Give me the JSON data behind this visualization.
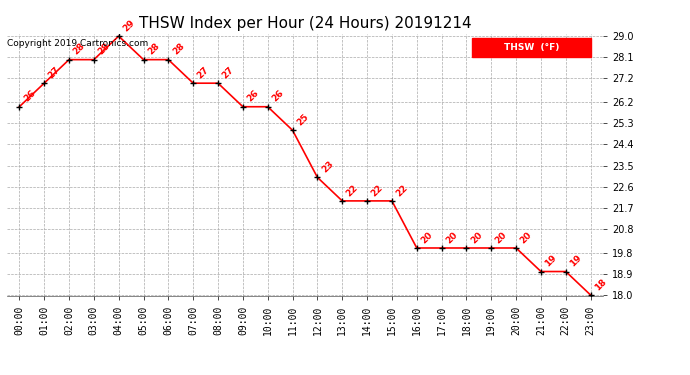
{
  "title": "THSW Index per Hour (24 Hours) 20191214",
  "copyright": "Copyright 2019 Cartronics.com",
  "legend_label": "THSW  (°F)",
  "hours": [
    "00:00",
    "01:00",
    "02:00",
    "03:00",
    "04:00",
    "05:00",
    "06:00",
    "07:00",
    "08:00",
    "09:00",
    "10:00",
    "11:00",
    "12:00",
    "13:00",
    "14:00",
    "15:00",
    "16:00",
    "17:00",
    "18:00",
    "19:00",
    "20:00",
    "21:00",
    "22:00",
    "23:00"
  ],
  "values": [
    26,
    27,
    28,
    28,
    29,
    28,
    28,
    27,
    27,
    26,
    26,
    25,
    23,
    22,
    22,
    22,
    20,
    20,
    20,
    20,
    20,
    19,
    19,
    18
  ],
  "ylim_min": 18.0,
  "ylim_max": 29.0,
  "yticks": [
    18.0,
    18.9,
    19.8,
    20.8,
    21.7,
    22.6,
    23.5,
    24.4,
    25.3,
    26.2,
    27.2,
    28.1,
    29.0
  ],
  "line_color": "red",
  "marker_color": "black",
  "label_color": "red",
  "bg_color": "white",
  "grid_color": "#aaaaaa",
  "title_fontsize": 11,
  "label_fontsize": 6.5,
  "tick_fontsize": 7,
  "copyright_fontsize": 6.5,
  "legend_box_color": "red",
  "legend_text_color": "white"
}
